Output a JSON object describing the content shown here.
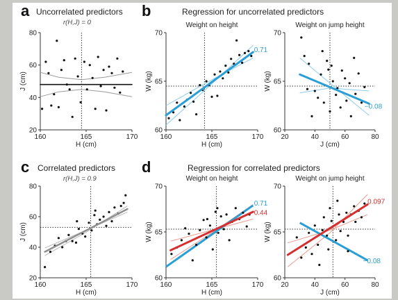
{
  "panels": {
    "a": {
      "letter": "a",
      "title": "Uncorrelated predictors",
      "subtitle": "r(H,J) = 0"
    },
    "b": {
      "letter": "b",
      "title": "Regression for uncorrelated predictors"
    },
    "c": {
      "letter": "c",
      "title": "Correlated predictors",
      "subtitle": "r(H,J) = 0.9"
    },
    "d": {
      "letter": "d",
      "title": "Regression for correlated predictors"
    }
  },
  "colors": {
    "blue": "#2a9fd6",
    "blue_light": "#8ccbee",
    "red": "#d62f2f",
    "red_light": "#ec9a8e",
    "gray": "#8f8f8f",
    "gray_light": "#c4c4c4"
  },
  "chart_data": [
    {
      "id": "a",
      "type": "scatter",
      "title": "Uncorrelated predictors",
      "xlabel": "H (cm)",
      "ylabel": "J (cm)",
      "xlim": [
        160,
        170
      ],
      "ylim": [
        20,
        80
      ],
      "xticks": [
        "160",
        "165",
        "170"
      ],
      "yticks": [
        "20",
        "40",
        "60",
        "80"
      ],
      "refx": 164.5,
      "refy": 48,
      "points": [
        [
          160.2,
          33
        ],
        [
          160.6,
          62
        ],
        [
          160.9,
          55
        ],
        [
          161.2,
          35
        ],
        [
          161.5,
          42
        ],
        [
          161.8,
          75
        ],
        [
          162.0,
          34
        ],
        [
          162.3,
          57
        ],
        [
          162.6,
          63
        ],
        [
          162.9,
          48
        ],
        [
          163.2,
          45
        ],
        [
          163.5,
          28
        ],
        [
          163.8,
          64
        ],
        [
          164.1,
          53
        ],
        [
          164.4,
          37
        ],
        [
          164.8,
          62
        ],
        [
          165.1,
          45
        ],
        [
          165.4,
          60
        ],
        [
          165.7,
          52
        ],
        [
          166.0,
          33
        ],
        [
          166.3,
          65
        ],
        [
          166.6,
          47
        ],
        [
          166.9,
          57
        ],
        [
          167.2,
          32
        ],
        [
          167.5,
          59
        ],
        [
          167.8,
          55
        ],
        [
          168.1,
          46
        ],
        [
          168.4,
          64
        ],
        [
          168.7,
          43
        ],
        [
          169.0,
          56
        ]
      ],
      "fit": {
        "color": "#111111",
        "width": 1.6,
        "points": [
          [
            160,
            48
          ],
          [
            170,
            48
          ]
        ]
      },
      "bands": [
        {
          "color": "#9a9a9a",
          "width": 1,
          "points": [
            [
              160,
              55.5
            ],
            [
              162,
              52.5
            ],
            [
              164.5,
              51
            ],
            [
              167,
              52.5
            ],
            [
              170,
              55.5
            ]
          ]
        },
        {
          "color": "#9a9a9a",
          "width": 1,
          "points": [
            [
              160,
              40.5
            ],
            [
              162,
              43.5
            ],
            [
              164.5,
              45
            ],
            [
              167,
              43.5
            ],
            [
              170,
              40.5
            ]
          ]
        }
      ],
      "labels": []
    },
    {
      "id": "b1",
      "type": "scatter",
      "title": "Weight on height",
      "xlabel": "H (cm)",
      "ylabel": "W (kg)",
      "xlim": [
        160,
        170
      ],
      "ylim": [
        60,
        70
      ],
      "xticks": [
        "160",
        "165",
        "170"
      ],
      "yticks": [
        "60",
        "65",
        "70"
      ],
      "refx": 164.2,
      "refy": 64.5,
      "points": [
        [
          160.3,
          61.2
        ],
        [
          160.8,
          61.8
        ],
        [
          161.2,
          62.8
        ],
        [
          161.5,
          61.0
        ],
        [
          162.0,
          62.4
        ],
        [
          162.3,
          63.1
        ],
        [
          162.7,
          63.8
        ],
        [
          163.0,
          62.9
        ],
        [
          163.3,
          61.6
        ],
        [
          163.7,
          64.6
        ],
        [
          164.0,
          64.1
        ],
        [
          164.4,
          65.0
        ],
        [
          164.7,
          64.6
        ],
        [
          165.0,
          63.4
        ],
        [
          165.3,
          65.7
        ],
        [
          165.6,
          63.5
        ],
        [
          165.9,
          66.0
        ],
        [
          166.2,
          65.3
        ],
        [
          166.5,
          66.6
        ],
        [
          166.8,
          65.9
        ],
        [
          167.1,
          67.3
        ],
        [
          167.4,
          66.8
        ],
        [
          167.7,
          69.2
        ],
        [
          168.0,
          67.7
        ],
        [
          168.3,
          66.9
        ],
        [
          168.6,
          67.9
        ],
        [
          169.0,
          68.1
        ],
        [
          169.3,
          67.6
        ]
      ],
      "fit": {
        "color": "#2a9fd6",
        "width": 3,
        "points": [
          [
            160,
            61.5
          ],
          [
            169.5,
            68.0
          ]
        ]
      },
      "bands": [
        {
          "color": "#8ccbee",
          "width": 1,
          "points": [
            [
              160,
              62.5
            ],
            [
              164.5,
              64.9
            ],
            [
              169.5,
              67.4
            ]
          ]
        },
        {
          "color": "#8ccbee",
          "width": 1,
          "points": [
            [
              160,
              60.5
            ],
            [
              164.5,
              64.3
            ],
            [
              169.5,
              68.7
            ]
          ]
        }
      ],
      "labels": [
        {
          "text": "0.71",
          "color": "#2a9fd6",
          "x": 169.6,
          "y": 68.2
        }
      ]
    },
    {
      "id": "b2",
      "type": "scatter",
      "title": "Weight on jump height",
      "xlabel": "J (cm)",
      "ylabel": "W (kg)",
      "xlim": [
        20,
        80
      ],
      "ylim": [
        60,
        70
      ],
      "xticks": [
        "20",
        "40",
        "60",
        "80"
      ],
      "yticks": [
        "60",
        "65",
        "70"
      ],
      "refx": 50,
      "refy": 64.5,
      "points": [
        [
          31,
          69.5
        ],
        [
          33,
          67.6
        ],
        [
          36,
          66.8
        ],
        [
          38,
          61.4
        ],
        [
          40,
          64.0
        ],
        [
          42,
          63.3
        ],
        [
          44,
          65.7
        ],
        [
          46,
          62.8
        ],
        [
          48,
          67.1
        ],
        [
          49,
          66.2
        ],
        [
          50,
          61.9
        ],
        [
          51,
          66.6
        ],
        [
          52,
          65.0
        ],
        [
          54,
          63.6
        ],
        [
          55,
          64.3
        ],
        [
          57,
          62.3
        ],
        [
          58,
          66.1
        ],
        [
          60,
          65.3
        ],
        [
          61,
          63.0
        ],
        [
          63,
          64.8
        ],
        [
          64,
          61.4
        ],
        [
          66,
          67.4
        ],
        [
          67,
          63.7
        ],
        [
          69,
          65.8
        ],
        [
          71,
          62.8
        ],
        [
          73,
          64.4
        ],
        [
          35,
          64.2
        ],
        [
          45,
          68.1
        ]
      ],
      "fit": {
        "color": "#2a9fd6",
        "width": 3,
        "points": [
          [
            30,
            65.7
          ],
          [
            76,
            62.7
          ]
        ]
      },
      "bands": [
        {
          "color": "#8ccbee",
          "width": 1,
          "points": [
            [
              30,
              67.4
            ],
            [
              50,
              64.8
            ],
            [
              76,
              61.5
            ]
          ]
        },
        {
          "color": "#8ccbee",
          "width": 1,
          "points": [
            [
              30,
              63.8
            ],
            [
              50,
              64.3
            ],
            [
              76,
              64.0
            ]
          ]
        }
      ],
      "labels": [
        {
          "text": "−0.08",
          "color": "#2a9fd6",
          "x": 73,
          "y": 62.4
        }
      ]
    },
    {
      "id": "c",
      "type": "scatter",
      "title": "Correlated predictors",
      "xlabel": "H (cm)",
      "ylabel": "J (cm)",
      "xlim": [
        160,
        170
      ],
      "ylim": [
        20,
        80
      ],
      "xticks": [
        "160",
        "165",
        "170"
      ],
      "yticks": [
        "20",
        "40",
        "60",
        "80"
      ],
      "refx": 165.5,
      "refy": 53,
      "points": [
        [
          160.5,
          27
        ],
        [
          161.1,
          37
        ],
        [
          161.6,
          41
        ],
        [
          162.0,
          46
        ],
        [
          162.4,
          40
        ],
        [
          162.8,
          44
        ],
        [
          163.1,
          48
        ],
        [
          163.5,
          44
        ],
        [
          163.9,
          43
        ],
        [
          164.2,
          52
        ],
        [
          164.6,
          49
        ],
        [
          164.9,
          47
        ],
        [
          165.3,
          56
        ],
        [
          165.6,
          51
        ],
        [
          165.9,
          61
        ],
        [
          166.2,
          55
        ],
        [
          166.5,
          58
        ],
        [
          166.9,
          60
        ],
        [
          167.2,
          54
        ],
        [
          167.5,
          63
        ],
        [
          167.8,
          57
        ],
        [
          168.1,
          66
        ],
        [
          168.5,
          62
        ],
        [
          168.8,
          67
        ],
        [
          169.1,
          69
        ],
        [
          169.3,
          74
        ],
        [
          166.0,
          64
        ],
        [
          164.0,
          57
        ]
      ],
      "fit": {
        "color": "#8f8f8f",
        "width": 2.5,
        "points": [
          [
            160.5,
            37
          ],
          [
            169.5,
            65
          ]
        ]
      },
      "bands": [
        {
          "color": "#b8b8b8",
          "width": 1,
          "points": [
            [
              160.5,
              39.5
            ],
            [
              165,
              51.2
            ],
            [
              169.5,
              63
            ]
          ]
        },
        {
          "color": "#b8b8b8",
          "width": 1,
          "points": [
            [
              160.5,
              34.5
            ],
            [
              165,
              49.8
            ],
            [
              169.5,
              67
            ]
          ]
        }
      ],
      "labels": []
    },
    {
      "id": "d1",
      "type": "scatter",
      "title": "Weight on height",
      "xlabel": "H (cm)",
      "ylabel": "W (kg)",
      "xlim": [
        160,
        170
      ],
      "ylim": [
        60,
        70
      ],
      "xticks": [
        "160",
        "165",
        "170"
      ],
      "yticks": [
        "60",
        "65",
        "70"
      ],
      "refx": 165.5,
      "refy": 65.3,
      "points": [
        [
          160.6,
          62.6
        ],
        [
          161.2,
          63.3
        ],
        [
          161.7,
          64.1
        ],
        [
          162.1,
          65.4
        ],
        [
          162.5,
          64.8
        ],
        [
          162.9,
          61.9
        ],
        [
          163.3,
          63.6
        ],
        [
          163.7,
          65.2
        ],
        [
          164.1,
          66.3
        ],
        [
          164.4,
          64.4
        ],
        [
          164.8,
          65.7
        ],
        [
          165.1,
          63.1
        ],
        [
          165.4,
          67.2
        ],
        [
          165.7,
          64.9
        ],
        [
          166.0,
          66.7
        ],
        [
          166.3,
          65.3
        ],
        [
          166.6,
          66.9
        ],
        [
          166.9,
          64.1
        ],
        [
          167.2,
          66.1
        ],
        [
          167.6,
          67.6
        ],
        [
          168.0,
          66.4
        ],
        [
          168.4,
          67.1
        ],
        [
          168.8,
          65.6
        ],
        [
          169.1,
          66.9
        ],
        [
          165.6,
          67.6
        ],
        [
          164.5,
          66.4
        ]
      ],
      "fit": {
        "color": "#d62f2f",
        "width": 3,
        "points": [
          [
            160.5,
            63.0
          ],
          [
            169.5,
            67.2
          ]
        ]
      },
      "bands": [
        {
          "color": "#ec9a8e",
          "width": 1,
          "points": [
            [
              160.5,
              64.0
            ],
            [
              165,
              65.2
            ],
            [
              169.5,
              66.4
            ]
          ]
        },
        {
          "color": "#ec9a8e",
          "width": 1,
          "points": [
            [
              160.5,
              62.0
            ],
            [
              165,
              64.9
            ],
            [
              169.5,
              68.0
            ]
          ]
        },
        {
          "color": "#2a9fd6",
          "width": 3,
          "points": [
            [
              160,
              61.2
            ],
            [
              169.5,
              67.9
            ]
          ]
        }
      ],
      "labels": [
        {
          "text": "0.71",
          "color": "#2a9fd6",
          "x": 169.6,
          "y": 68.1
        },
        {
          "text": "0.44",
          "color": "#d62f2f",
          "x": 169.6,
          "y": 67.1
        }
      ]
    },
    {
      "id": "d2",
      "type": "scatter",
      "title": "Weight on jump height",
      "xlabel": "J (cm)",
      "ylabel": "W (kg)",
      "xlim": [
        20,
        80
      ],
      "ylim": [
        60,
        70
      ],
      "xticks": [
        "20",
        "40",
        "60",
        "80"
      ],
      "yticks": [
        "60",
        "65",
        "70"
      ],
      "refx": 52,
      "refy": 65.3,
      "points": [
        [
          28,
          64.4
        ],
        [
          31,
          62.2
        ],
        [
          34,
          63.3
        ],
        [
          36,
          64.9
        ],
        [
          38,
          62.6
        ],
        [
          40,
          65.7
        ],
        [
          42,
          63.6
        ],
        [
          43,
          61.4
        ],
        [
          45,
          65.2
        ],
        [
          46,
          66.6
        ],
        [
          48,
          64.6
        ],
        [
          49,
          63.1
        ],
        [
          50,
          67.6
        ],
        [
          51,
          66.2
        ],
        [
          53,
          65.7
        ],
        [
          54,
          64.1
        ],
        [
          56,
          66.9
        ],
        [
          57,
          65.1
        ],
        [
          59,
          66.1
        ],
        [
          61,
          67.1
        ],
        [
          62,
          64.6
        ],
        [
          64,
          66.9
        ],
        [
          66,
          67.8
        ],
        [
          67,
          66.1
        ],
        [
          69,
          67.3
        ],
        [
          71,
          66.6
        ],
        [
          73,
          68.1
        ],
        [
          55,
          68.4
        ],
        [
          62,
          62.9
        ]
      ],
      "fit": {
        "color": "#d62f2f",
        "width": 3,
        "points": [
          [
            22,
            62.5
          ],
          [
            75,
            68.0
          ]
        ]
      },
      "bands": [
        {
          "color": "#ec9a8e",
          "width": 1,
          "points": [
            [
              22,
              63.8
            ],
            [
              50,
              65.2
            ],
            [
              75,
              66.9
            ]
          ]
        },
        {
          "color": "#ec9a8e",
          "width": 1,
          "points": [
            [
              22,
              61.2
            ],
            [
              50,
              64.9
            ],
            [
              75,
              69.1
            ]
          ]
        },
        {
          "color": "#2a9fd6",
          "width": 3,
          "points": [
            [
              30,
              66.0
            ],
            [
              75,
              61.9
            ]
          ]
        }
      ],
      "labels": [
        {
          "text": "0.097",
          "color": "#d62f2f",
          "x": 75,
          "y": 68.3
        },
        {
          "text": "−0.08",
          "color": "#2a9fd6",
          "x": 72,
          "y": 61.8
        }
      ]
    }
  ]
}
